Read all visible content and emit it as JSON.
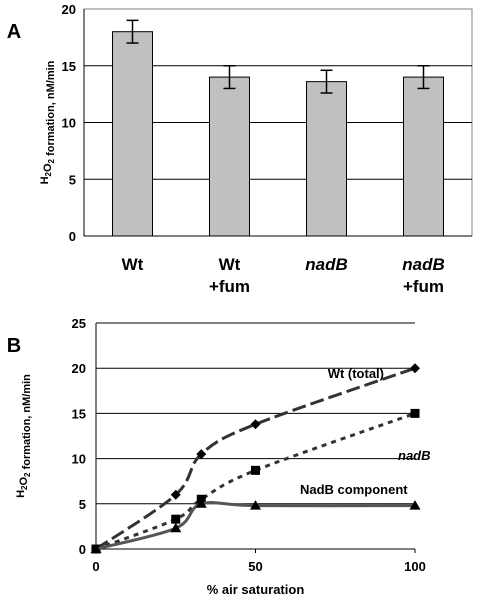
{
  "chart_data": [
    {
      "panel": "A",
      "type": "bar",
      "categories": [
        [
          "Wt"
        ],
        [
          "Wt",
          "+fum"
        ],
        [
          "nadB"
        ],
        [
          "nadB",
          "+fum"
        ]
      ],
      "category_italic": [
        false,
        false,
        true,
        true
      ],
      "values": [
        18.0,
        14.0,
        13.6,
        14.0
      ],
      "errors": [
        1.0,
        1.0,
        1.0,
        1.0
      ],
      "ylabel": "H2O2 formation, nM/min",
      "ylim": [
        0,
        20
      ],
      "yticks": [
        0,
        5,
        10,
        15,
        20
      ],
      "grid": true,
      "bar_color": "#c0c0c0"
    },
    {
      "panel": "B",
      "type": "line",
      "xlabel": "% air saturation",
      "ylabel": "H2O2 formation, nM/min",
      "xlim": [
        0,
        100
      ],
      "ylim": [
        0,
        25
      ],
      "xticks": [
        0,
        50,
        100
      ],
      "yticks": [
        0,
        5,
        10,
        15,
        20,
        25
      ],
      "grid": true,
      "series": [
        {
          "name": "Wt (total)",
          "x": [
            0,
            25,
            33,
            50,
            100
          ],
          "y": [
            0,
            6,
            10.5,
            13.8,
            20
          ],
          "marker": "diamond",
          "style": "long-dash",
          "italic": false
        },
        {
          "name": "nadB",
          "x": [
            0,
            25,
            33,
            50,
            100
          ],
          "y": [
            0,
            3.3,
            5.5,
            8.7,
            15
          ],
          "marker": "square",
          "style": "short-dash",
          "italic": true
        },
        {
          "name": "NadB component",
          "x": [
            0,
            25,
            33,
            50,
            100
          ],
          "y": [
            0,
            2.3,
            5,
            4.8,
            4.8
          ],
          "marker": "triangle",
          "style": "solid",
          "italic": false
        }
      ]
    }
  ]
}
